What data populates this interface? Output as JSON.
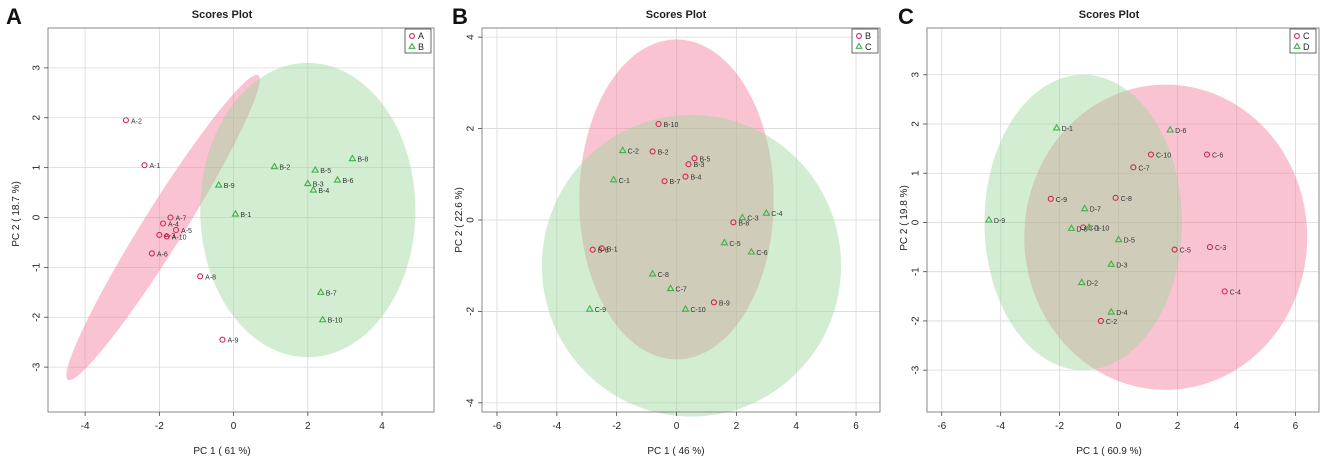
{
  "colors": {
    "red": "#d6224f",
    "green": "#3fb04a",
    "red_fill": "#f47a9a",
    "green_fill": "#9cd89c",
    "grid": "#d9d9d9",
    "frame": "#8a8a8a"
  },
  "panels": [
    {
      "label": "A",
      "title": "Scores Plot",
      "legend": [
        "A",
        "B"
      ]
    },
    {
      "label": "B",
      "title": "Scores Plot",
      "legend": [
        "B",
        "C"
      ]
    },
    {
      "label": "C",
      "title": "Scores Plot",
      "legend": [
        "C",
        "D"
      ]
    }
  ],
  "chart_data": [
    {
      "type": "scatter",
      "title": "Scores Plot",
      "xlabel": "PC 1 ( 61 %)",
      "ylabel": "PC 2 ( 18.7 %)",
      "xlim": [
        -5.0,
        5.4
      ],
      "ylim": [
        -3.9,
        3.8
      ],
      "xticks": [
        -4,
        -2,
        0,
        2,
        4
      ],
      "yticks": [
        -3,
        -2,
        -1,
        0,
        1,
        2,
        3
      ],
      "grid": true,
      "legend_position": "top-right",
      "series": [
        {
          "name": "A",
          "marker": "circle",
          "color": "red",
          "points": [
            {
              "label": "A-1",
              "x": -2.4,
              "y": 1.05
            },
            {
              "label": "A-2",
              "x": -2.9,
              "y": 1.95
            },
            {
              "label": "A-3",
              "x": -2.0,
              "y": -0.35
            },
            {
              "label": "A-4",
              "x": -1.9,
              "y": -0.12
            },
            {
              "label": "A-5",
              "x": -1.55,
              "y": -0.25
            },
            {
              "label": "A-6",
              "x": -2.2,
              "y": -0.72
            },
            {
              "label": "A-7",
              "x": -1.7,
              "y": 0.0
            },
            {
              "label": "A-8",
              "x": -0.9,
              "y": -1.18
            },
            {
              "label": "A-9",
              "x": -0.3,
              "y": -2.45
            },
            {
              "label": "A-10",
              "x": -1.8,
              "y": -0.38
            }
          ]
        },
        {
          "name": "B",
          "marker": "triangle",
          "color": "green",
          "points": [
            {
              "label": "B-1",
              "x": 0.05,
              "y": 0.07
            },
            {
              "label": "B-2",
              "x": 1.1,
              "y": 1.02
            },
            {
              "label": "B-3",
              "x": 2.0,
              "y": 0.68
            },
            {
              "label": "B-4",
              "x": 2.15,
              "y": 0.55
            },
            {
              "label": "B-5",
              "x": 2.2,
              "y": 0.95
            },
            {
              "label": "B-6",
              "x": 2.8,
              "y": 0.75
            },
            {
              "label": "B-7",
              "x": 2.35,
              "y": -1.5
            },
            {
              "label": "B-8",
              "x": 3.2,
              "y": 1.18
            },
            {
              "label": "B-9",
              "x": -0.4,
              "y": 0.65
            },
            {
              "label": "B-10",
              "x": 2.4,
              "y": -2.05
            }
          ]
        }
      ],
      "ellipses": [
        {
          "group": "A",
          "center": [
            -1.9,
            -0.2
          ],
          "semi_axes": [
            0.55,
            3.6
          ],
          "rotation_deg": 32,
          "color": "red_fill"
        },
        {
          "group": "B",
          "center": [
            2.0,
            0.15
          ],
          "semi_axes": [
            2.9,
            2.95
          ],
          "rotation_deg": 0,
          "color": "green_fill"
        }
      ]
    },
    {
      "type": "scatter",
      "title": "Scores Plot",
      "xlabel": "PC 1 ( 46 %)",
      "ylabel": "PC 2 ( 22.6 %)",
      "xlim": [
        -6.5,
        6.8
      ],
      "ylim": [
        -4.2,
        4.2
      ],
      "xticks": [
        -6,
        -4,
        -2,
        0,
        2,
        4,
        6
      ],
      "yticks": [
        -4,
        -2,
        0,
        2,
        4
      ],
      "grid": true,
      "legend_position": "top-right",
      "series": [
        {
          "name": "B",
          "marker": "circle",
          "color": "red",
          "points": [
            {
              "label": "B-1",
              "x": -2.5,
              "y": -0.62
            },
            {
              "label": "B-2",
              "x": -0.8,
              "y": 1.5
            },
            {
              "label": "B-3",
              "x": 0.4,
              "y": 1.22
            },
            {
              "label": "B-4",
              "x": 0.3,
              "y": 0.95
            },
            {
              "label": "B-5",
              "x": 0.6,
              "y": 1.35
            },
            {
              "label": "B-6",
              "x": -2.8,
              "y": -0.65
            },
            {
              "label": "B-7",
              "x": -0.4,
              "y": 0.85
            },
            {
              "label": "B-8",
              "x": 1.9,
              "y": -0.05
            },
            {
              "label": "B-9",
              "x": 1.25,
              "y": -1.8
            },
            {
              "label": "B-10",
              "x": -0.6,
              "y": 2.1
            }
          ]
        },
        {
          "name": "C",
          "marker": "triangle",
          "color": "green",
          "points": [
            {
              "label": "C-1",
              "x": -2.1,
              "y": 0.88
            },
            {
              "label": "C-2",
              "x": -1.8,
              "y": 1.52
            },
            {
              "label": "C-3",
              "x": 2.2,
              "y": 0.05
            },
            {
              "label": "C-4",
              "x": 3.0,
              "y": 0.15
            },
            {
              "label": "C-5",
              "x": 1.6,
              "y": -0.5
            },
            {
              "label": "C-6",
              "x": 2.5,
              "y": -0.7
            },
            {
              "label": "C-7",
              "x": -0.2,
              "y": -1.5
            },
            {
              "label": "C-8",
              "x": -0.8,
              "y": -1.18
            },
            {
              "label": "C-9",
              "x": -2.9,
              "y": -1.95
            },
            {
              "label": "C-10",
              "x": 0.3,
              "y": -1.95
            }
          ]
        }
      ],
      "ellipses": [
        {
          "group": "B",
          "center": [
            0.0,
            0.45
          ],
          "semi_axes": [
            3.25,
            3.5
          ],
          "rotation_deg": 0,
          "color": "red_fill"
        },
        {
          "group": "C",
          "center": [
            0.5,
            -1.0
          ],
          "semi_axes": [
            5.0,
            3.3
          ],
          "rotation_deg": 0,
          "color": "green_fill"
        }
      ]
    },
    {
      "type": "scatter",
      "title": "Scores Plot",
      "xlabel": "PC 1 ( 60.9 %)",
      "ylabel": "PC 2 ( 19.8 %)",
      "xlim": [
        -6.5,
        6.8
      ],
      "ylim": [
        -3.85,
        3.95
      ],
      "xticks": [
        -6,
        -4,
        -2,
        0,
        2,
        4,
        6
      ],
      "yticks": [
        -3,
        -2,
        -1,
        0,
        1,
        2,
        3
      ],
      "grid": true,
      "legend_position": "top-right",
      "series": [
        {
          "name": "C",
          "marker": "circle",
          "color": "red",
          "points": [
            {
              "label": "C-1",
              "x": -1.2,
              "y": -0.1
            },
            {
              "label": "C-2",
              "x": -0.6,
              "y": -2.0
            },
            {
              "label": "C-3",
              "x": 3.1,
              "y": -0.5
            },
            {
              "label": "C-4",
              "x": 3.6,
              "y": -1.4
            },
            {
              "label": "C-5",
              "x": 1.9,
              "y": -0.55
            },
            {
              "label": "C-6",
              "x": 3.0,
              "y": 1.38
            },
            {
              "label": "C-7",
              "x": 0.5,
              "y": 1.12
            },
            {
              "label": "C-8",
              "x": -0.1,
              "y": 0.5
            },
            {
              "label": "C-9",
              "x": -2.3,
              "y": 0.48
            },
            {
              "label": "C-10",
              "x": 1.1,
              "y": 1.38
            }
          ]
        },
        {
          "name": "D",
          "marker": "triangle",
          "color": "green",
          "points": [
            {
              "label": "D-1",
              "x": -2.1,
              "y": 1.92
            },
            {
              "label": "D-2",
              "x": -1.25,
              "y": -1.22
            },
            {
              "label": "D-3",
              "x": -0.25,
              "y": -0.85
            },
            {
              "label": "D-4",
              "x": -0.25,
              "y": -1.82
            },
            {
              "label": "D-5",
              "x": 0.0,
              "y": -0.35
            },
            {
              "label": "D-6",
              "x": 1.75,
              "y": 1.88
            },
            {
              "label": "D-7",
              "x": -1.15,
              "y": 0.28
            },
            {
              "label": "D-8",
              "x": -1.6,
              "y": -0.12
            },
            {
              "label": "D-9",
              "x": -4.4,
              "y": 0.05
            },
            {
              "label": "D-10",
              "x": -1.0,
              "y": -0.1
            }
          ]
        }
      ],
      "ellipses": [
        {
          "group": "C",
          "center": [
            1.6,
            -0.3
          ],
          "semi_axes": [
            4.8,
            3.1
          ],
          "rotation_deg": 0,
          "color": "red_fill"
        },
        {
          "group": "D",
          "center": [
            -1.2,
            0.0
          ],
          "semi_axes": [
            3.35,
            3.0
          ],
          "rotation_deg": 0,
          "color": "green_fill"
        }
      ]
    }
  ]
}
